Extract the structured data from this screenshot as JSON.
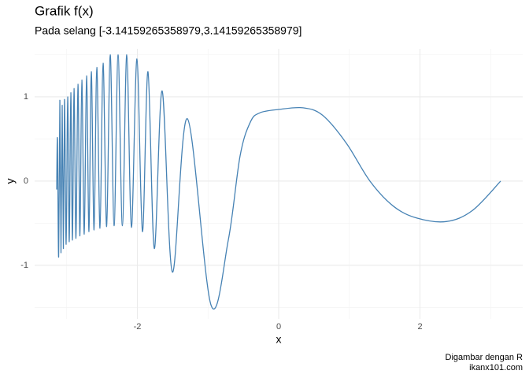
{
  "chart_data": {
    "type": "line",
    "title": "Grafik f(x)",
    "subtitle": "Pada selang [-3.14159265358979,3.14159265358979]",
    "x_label": "x",
    "y_label": "y",
    "caption": [
      "Digambar dengan R",
      "ikanx101.com"
    ],
    "x": [
      -3.142,
      -3.131,
      -3.114,
      -3.097,
      -3.081,
      -3.064,
      -3.047,
      -3.031,
      -3.008,
      -2.986,
      -2.964,
      -2.942,
      -2.919,
      -2.897,
      -2.869,
      -2.841,
      -2.813,
      -2.786,
      -2.752,
      -2.719,
      -2.685,
      -2.652,
      -2.613,
      -2.574,
      -2.529,
      -2.485,
      -2.435,
      -2.384,
      -2.329,
      -2.273,
      -2.212,
      -2.15,
      -2.084,
      -2.006,
      -1.928,
      -1.85,
      -1.76,
      -1.649,
      -1.504,
      -1.292,
      -0.958,
      -0.713,
      -0.546,
      -0.401,
      -0.267,
      0,
      0.345,
      0.624,
      0.958,
      1.292,
      1.627,
      1.961,
      2.373,
      2.741,
      3.142
    ],
    "series": [
      {
        "color": "#4682b4",
        "values": [
          -0.1,
          0.5,
          -0.9,
          0.96,
          -0.85,
          0.9,
          -0.8,
          0.97,
          -0.75,
          1.0,
          -0.72,
          1.05,
          -0.7,
          1.1,
          -0.68,
          1.15,
          -0.65,
          1.2,
          -0.63,
          1.25,
          -0.6,
          1.3,
          -0.58,
          1.35,
          -0.56,
          1.4,
          -0.54,
          1.5,
          -0.53,
          1.5,
          -0.53,
          1.5,
          -0.55,
          1.45,
          -0.6,
          1.3,
          -0.8,
          1.07,
          -1.08,
          0.74,
          -1.47,
          -0.7,
          0.3,
          0.7,
          0.81,
          0.85,
          0.87,
          0.78,
          0.45,
          0.0,
          -0.3,
          -0.44,
          -0.48,
          -0.35,
          0
        ]
      }
    ],
    "xlim": [
      -3.454,
      3.454
    ],
    "ylim": [
      -1.636,
      1.57
    ],
    "xticks": [
      -2,
      0,
      2
    ],
    "yticks": [
      -1,
      0,
      1
    ],
    "grid": true
  }
}
